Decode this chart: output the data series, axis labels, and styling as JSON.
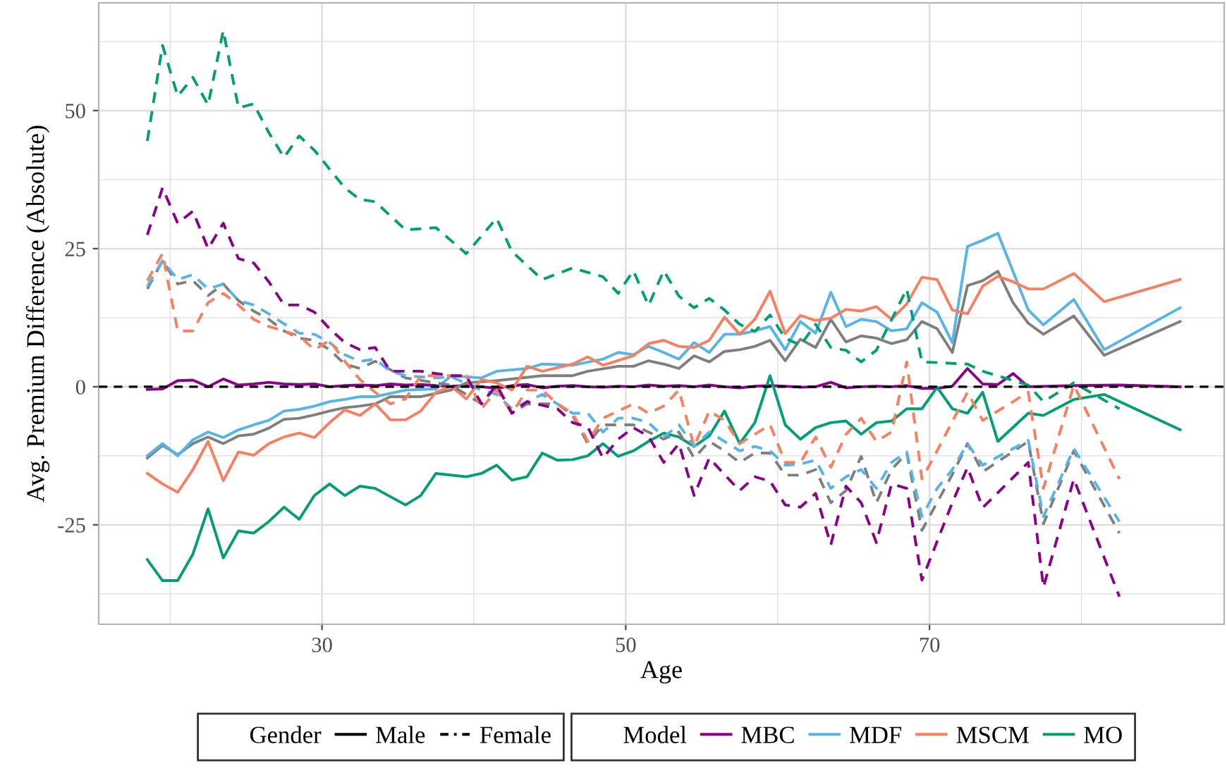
{
  "chart_data": {
    "type": "line",
    "xlabel": "Age",
    "ylabel": "Avg. Premium Difference (Absolute)",
    "legend_title": [
      "Gender",
      "Model"
    ],
    "annotations": [
      "Male",
      "Female"
    ],
    "xlim": [
      15.3,
      89.4
    ],
    "ylim": [
      -43,
      69.5
    ],
    "xticks": [
      30,
      50,
      70
    ],
    "yticks": [
      -25,
      0,
      25,
      50
    ],
    "grid": true,
    "legend": "bottom",
    "ref_lines": [
      {
        "axis": "y",
        "value": 0,
        "color": "#000000",
        "line_style": "dashed"
      }
    ],
    "series": [
      {
        "name": "MBC",
        "color": "#8b008b",
        "line_style": "solid",
        "x": [
          18.5,
          19.5,
          20.5,
          21.5,
          22.5,
          23.5,
          24.5,
          25.5,
          26.5,
          27.5,
          28.5,
          29.5,
          30.5,
          31.5,
          32.5,
          33.5,
          34.5,
          35.5,
          36.5,
          37.5,
          38.5,
          39.5,
          40.5,
          41.5,
          42.5,
          43.5,
          44.5,
          45.5,
          46.5,
          47.5,
          48.5,
          49.5,
          50.5,
          51.5,
          52.5,
          53.5,
          54.5,
          55.5,
          56.5,
          57.5,
          58.5,
          59.5,
          60.5,
          61.5,
          62.5,
          63.5,
          64.5,
          65.5,
          66.5,
          67.5,
          68.5,
          69.5,
          70.5,
          71.5,
          72.5,
          73.5,
          74.5,
          75.5,
          76.5,
          79.5,
          82.5,
          86.5
        ],
        "values": [
          -0.5,
          -0.4,
          1.1,
          1.2,
          0,
          1.4,
          0.3,
          0.5,
          0.8,
          0.5,
          0.4,
          0.5,
          0,
          0.2,
          0.3,
          0.2,
          0.5,
          0.3,
          0.4,
          0.2,
          0.1,
          0.2,
          0,
          -0.3,
          0.2,
          0.4,
          -0.2,
          0.1,
          0.2,
          0,
          -0.1,
          0.1,
          0,
          0.3,
          0.1,
          0.2,
          0,
          0.3,
          0,
          -0.2,
          0.1,
          0.2,
          0.1,
          -0.1,
          0,
          0.8,
          -0.2,
          0,
          0.1,
          0,
          0.2,
          -0.3,
          -0.3,
          0.1,
          3.3,
          0.5,
          0.4,
          2.4,
          0,
          0.2,
          0.3,
          0
        ]
      },
      {
        "color": "#7f7f7f",
        "line_style": "solid",
        "x": [
          18.5,
          19.5,
          20.5,
          21.5,
          22.5,
          23.5,
          24.5,
          25.5,
          26.5,
          27.5,
          28.5,
          29.5,
          30.5,
          31.5,
          32.5,
          33.5,
          34.5,
          36.5,
          38.5,
          39.5,
          41.5,
          44.5,
          46.5,
          47.5,
          49.5,
          50.5,
          51.5,
          52.5,
          53.5,
          54.5,
          55.5,
          56.5,
          57.5,
          58.5,
          59.5,
          60.5,
          61.5,
          62.5,
          63.5,
          64.5,
          65.5,
          66.5,
          67.5,
          68.5,
          69.5,
          70.5,
          71.5,
          72.5,
          73.5,
          74.5,
          75.5,
          76.5,
          77.5,
          79.5,
          81.5,
          86.5
        ],
        "values": [
          -12.9,
          -10.6,
          -12.3,
          -10.3,
          -9.1,
          -10.3,
          -8.9,
          -8.6,
          -7.5,
          -5.9,
          -5.7,
          -5.1,
          -4.4,
          -3.8,
          -3.5,
          -3.1,
          -1.8,
          -1.8,
          -0.6,
          0.7,
          1.1,
          2,
          2,
          2.8,
          3.7,
          3.7,
          4.7,
          4.1,
          3.3,
          5.6,
          4.5,
          6.4,
          6.7,
          7.3,
          8.4,
          4.7,
          8.6,
          7.1,
          12.2,
          8.1,
          9.2,
          8.8,
          7.8,
          8.5,
          11.8,
          10.5,
          6.2,
          18.3,
          19.2,
          20.9,
          15.2,
          11.5,
          9.5,
          12.8,
          5.7,
          11.8
        ]
      },
      {
        "name": "MDF",
        "color": "#56b4e9",
        "line_style": "solid",
        "x": [
          18.5,
          19.5,
          20.5,
          21.5,
          22.5,
          23.5,
          24.5,
          25.5,
          26.5,
          27.5,
          28.5,
          29.5,
          30.5,
          31.5,
          32.5,
          33.5,
          35.5,
          37.5,
          38.5,
          40.5,
          41.5,
          43.5,
          44.5,
          46.5,
          48.5,
          49.5,
          50.5,
          51.5,
          52.5,
          53.5,
          54.5,
          55.5,
          56.5,
          57.5,
          58.5,
          59.5,
          60.5,
          61.5,
          62.5,
          63.5,
          64.5,
          65.5,
          66.5,
          67.5,
          68.5,
          69.5,
          70.5,
          71.5,
          72.5,
          73.5,
          74.5,
          76.5,
          77.5,
          79.5,
          81.5,
          86.5
        ],
        "values": [
          -12.5,
          -10.3,
          -12.5,
          -9.6,
          -8.2,
          -9.2,
          -7.8,
          -6.9,
          -6.1,
          -4.4,
          -4.1,
          -3.5,
          -2.7,
          -2.3,
          -1.8,
          -1.8,
          -0.6,
          -0.4,
          2,
          1.6,
          2.8,
          3.3,
          4.1,
          3.9,
          5,
          6.2,
          5.8,
          7.3,
          6.2,
          5,
          8,
          6.2,
          9.5,
          9.5,
          10.1,
          10.9,
          6.7,
          11.8,
          9.7,
          17.1,
          10.9,
          12.2,
          11.8,
          10.1,
          10.5,
          15.2,
          13.5,
          8,
          25.4,
          26.5,
          27.8,
          13.9,
          11.2,
          15.8,
          6.7,
          14.3
        ]
      },
      {
        "name": "MSCM",
        "color": "#fa7f5e",
        "line_style": "solid",
        "x": [
          18.5,
          19.5,
          20.5,
          21.5,
          22.5,
          23.5,
          24.5,
          25.5,
          26.5,
          27.5,
          28.5,
          29.5,
          30.5,
          31.5,
          32.5,
          33.5,
          34.5,
          35.5,
          36.5,
          37.5,
          38.5,
          39.5,
          40.5,
          41.5,
          42.5,
          43.5,
          44.5,
          46.5,
          47.5,
          48.5,
          50.5,
          51.5,
          52.5,
          53.5,
          54.5,
          55.5,
          56.5,
          57.5,
          58.5,
          59.5,
          60.5,
          61.5,
          62.5,
          63.5,
          64.5,
          65.5,
          66.5,
          67.5,
          68.5,
          69.5,
          70.5,
          71.5,
          72.5,
          73.5,
          74.5,
          75.5,
          76.5,
          77.5,
          79.5,
          81.5,
          86.5
        ],
        "values": [
          -15.7,
          -17.6,
          -19.1,
          -15,
          -9.9,
          -17,
          -11.8,
          -12.4,
          -10.3,
          -9.1,
          -8.4,
          -9.2,
          -6.5,
          -4.2,
          -5.2,
          -3.1,
          -6,
          -6,
          -4.4,
          -1,
          0.1,
          -2.2,
          1.3,
          0.7,
          -0.6,
          3.7,
          2.8,
          4.1,
          5.4,
          3.9,
          5.6,
          7.8,
          8.4,
          7.3,
          7.1,
          8.4,
          12.6,
          9.5,
          12.2,
          17.3,
          9.6,
          12.9,
          12,
          12.4,
          14,
          13.7,
          14.5,
          12.2,
          15,
          19.8,
          19.4,
          13.9,
          13.2,
          18.2,
          20,
          19,
          17.7,
          17.7,
          20.5,
          15.4,
          19.4
        ]
      },
      {
        "name": "MO",
        "color": "#009e73",
        "line_style": "solid",
        "x": [
          18.5,
          19.5,
          20.5,
          21.5,
          22.5,
          23.5,
          24.5,
          25.5,
          26.5,
          27.5,
          28.5,
          29.5,
          30.5,
          31.5,
          32.5,
          33.5,
          35.5,
          36.5,
          37.5,
          39.5,
          40.5,
          41.5,
          42.5,
          43.5,
          44.5,
          45.5,
          46.5,
          47.5,
          48.5,
          49.5,
          50.5,
          51.5,
          52.5,
          53.5,
          54.5,
          55.5,
          56.5,
          57.5,
          58.5,
          59.5,
          60.5,
          61.5,
          62.5,
          63.5,
          64.5,
          65.5,
          66.5,
          67.5,
          68.5,
          69.5,
          70.5,
          71.5,
          72.5,
          73.5,
          74.5,
          76.5,
          77.5,
          79.5,
          81.5,
          86.5
        ],
        "values": [
          -31.3,
          -35.1,
          -35.1,
          -30.3,
          -22.1,
          -31,
          -26.1,
          -26.5,
          -24.4,
          -21.8,
          -24,
          -19.7,
          -17.6,
          -19.7,
          -18,
          -18.4,
          -21.4,
          -19.7,
          -15.7,
          -16.3,
          -15.7,
          -14.2,
          -16.9,
          -16.3,
          -12,
          -13.3,
          -13.2,
          -12.5,
          -10.3,
          -12.6,
          -11.6,
          -9.9,
          -8.4,
          -9.1,
          -10.8,
          -8.9,
          -4.4,
          -10.3,
          -6.5,
          2,
          -6.9,
          -9.5,
          -7.4,
          -6.5,
          -6.2,
          -8.6,
          -6.5,
          -6.2,
          -4,
          -4,
          -0.1,
          -4,
          -4.8,
          -1,
          -9.9,
          -4.8,
          -5.2,
          -2.3,
          -1.4,
          -7.8
        ]
      },
      {
        "color": "#7f7f7f",
        "line_style": "dashed",
        "x": [
          18.5,
          19.5,
          20.5,
          21.5,
          22.5,
          23.5,
          24.5,
          25.5,
          26.5,
          27.5,
          28.5,
          29.5,
          30.5,
          31.5,
          32.5,
          33.5,
          35.5,
          37.5,
          38.5,
          40.5,
          41.5,
          42.5,
          43.5,
          45.5,
          46.5,
          47.5,
          48.5,
          50.5,
          51.5,
          52.5,
          53.5,
          54.5,
          55.5,
          56.5,
          57.5,
          58.5,
          59.5,
          60.5,
          61.5,
          62.5,
          63.5,
          64.5,
          65.5,
          66.5,
          67.5,
          68.5,
          69.5,
          71.5,
          72.5,
          73.5,
          76.5,
          77.5,
          79.5,
          82.5
        ],
        "values": [
          17.7,
          22.8,
          18.6,
          19.2,
          16.5,
          18.6,
          15.6,
          13.7,
          12.2,
          10.1,
          8.8,
          8.4,
          6.7,
          4.1,
          3.3,
          4.6,
          1.6,
          0.7,
          0.3,
          -3.1,
          0.3,
          -4.8,
          -3.1,
          -3.1,
          -5.2,
          -10.3,
          -6.9,
          -6.9,
          -8.2,
          -9.5,
          -8.2,
          -12.9,
          -9.9,
          -11.6,
          -13.7,
          -12,
          -12,
          -16,
          -16,
          -15,
          -21,
          -18.8,
          -12.6,
          -21,
          -15,
          -12,
          -26,
          -15.9,
          -10.3,
          -15.4,
          -9.9,
          -24.8,
          -11.6,
          -26.5
        ]
      },
      {
        "color": "#56b4e9",
        "line_style": "dashed",
        "x": [
          18.5,
          19.5,
          20.5,
          21.5,
          22.5,
          23.5,
          24.5,
          25.5,
          26.5,
          27.5,
          28.5,
          29.5,
          30.5,
          31.5,
          32.5,
          33.5,
          34.5,
          35.5,
          37.5,
          38.5,
          40.5,
          41.5,
          42.5,
          43.5,
          44.5,
          46.5,
          47.5,
          48.5,
          49.5,
          50.5,
          51.5,
          52.5,
          53.5,
          54.5,
          55.5,
          56.5,
          57.5,
          58.5,
          59.5,
          60.5,
          61.5,
          62.5,
          63.5,
          64.5,
          65.5,
          66.5,
          67.5,
          68.5,
          69.5,
          70.5,
          71.5,
          72.5,
          73.5,
          76.5,
          77.5,
          79.5,
          82.5
        ],
        "values": [
          18.2,
          22.8,
          19.4,
          20.3,
          17.7,
          18.6,
          15.6,
          14.8,
          13.2,
          11.4,
          9.7,
          9.5,
          8,
          5.8,
          4.6,
          5,
          2.8,
          2,
          1.6,
          1.8,
          -0.6,
          -1.4,
          -4,
          -2.7,
          -1.4,
          -4.8,
          -4.8,
          -8.2,
          -5.7,
          -5.7,
          -6.5,
          -9.1,
          -6.9,
          -10.8,
          -8.2,
          -9.9,
          -11.6,
          -10.8,
          -11.6,
          -14.2,
          -14,
          -13.3,
          -18.4,
          -16.3,
          -15,
          -18.4,
          -13.7,
          -11.8,
          -23.5,
          -18.4,
          -15,
          -10.3,
          -14.2,
          -9.7,
          -23.5,
          -11.2,
          -24.4
        ]
      },
      {
        "color": "#fa7f5e",
        "line_style": "dashed",
        "x": [
          18.5,
          19.5,
          20.5,
          21.5,
          22.5,
          23.5,
          24.5,
          25.5,
          26.5,
          27.5,
          28.5,
          29.5,
          30.5,
          31.5,
          32.5,
          33.5,
          34.5,
          35.5,
          36.5,
          37.5,
          38.5,
          39.5,
          40.5,
          41.5,
          42.5,
          43.5,
          44.5,
          45.5,
          46.5,
          47.5,
          48.5,
          50.5,
          51.5,
          52.5,
          53.5,
          54.5,
          55.5,
          56.5,
          57.5,
          58.5,
          59.5,
          60.5,
          61.5,
          62.5,
          63.5,
          64.5,
          65.5,
          66.5,
          67.5,
          68.5,
          69.5,
          70.5,
          72.5,
          73.5,
          76.5,
          77.5,
          79.5,
          82.5
        ],
        "values": [
          19.2,
          24.1,
          10.1,
          10.1,
          15.2,
          16.9,
          14.8,
          12.2,
          10.9,
          10.1,
          9.2,
          6.7,
          8.4,
          4.6,
          1.3,
          -1,
          -3.1,
          -2.2,
          2,
          2,
          2,
          2,
          -4,
          -0.6,
          -4.8,
          -0.6,
          -0.6,
          -3.1,
          -4.8,
          -9.9,
          -5.7,
          -3.1,
          -4.8,
          -3.5,
          -0.6,
          -10.8,
          -4.4,
          -6.1,
          -10.3,
          -8.6,
          -6.9,
          -13.7,
          -13.7,
          -9.1,
          -14.6,
          -8.6,
          -5.7,
          -9.9,
          -8.2,
          4.5,
          -16.7,
          -11.6,
          -1,
          -6.1,
          -1,
          -18.4,
          0.3,
          -16.7
        ]
      },
      {
        "color": "#8b008b",
        "line_style": "dashed",
        "x": [
          18.5,
          19.5,
          20.5,
          21.5,
          22.5,
          23.5,
          24.5,
          25.5,
          26.5,
          27.5,
          28.5,
          29.5,
          30.5,
          31.5,
          32.5,
          33.5,
          34.5,
          36.5,
          37.5,
          38.5,
          39.5,
          40.5,
          41.5,
          42.5,
          43.5,
          45.5,
          46.5,
          47.5,
          48.5,
          49.5,
          50.5,
          51.5,
          52.5,
          53.5,
          54.5,
          55.5,
          56.5,
          57.5,
          58.5,
          59.5,
          60.5,
          61.5,
          62.5,
          63.5,
          64.5,
          65.5,
          66.5,
          67.5,
          68.5,
          69.5,
          71.5,
          72.5,
          73.5,
          76.5,
          77.5,
          79.5,
          82.5
        ],
        "values": [
          27.5,
          36,
          29.6,
          31.8,
          25,
          29.6,
          23.2,
          22.4,
          19,
          14.8,
          14.8,
          13.5,
          10.5,
          8,
          6.7,
          7.1,
          2.8,
          2.8,
          2.4,
          2,
          2,
          -3.1,
          0.3,
          -4.8,
          -2.7,
          -4,
          -6.5,
          -7.3,
          -12.9,
          -9.5,
          -7.4,
          -9,
          -13.7,
          -10.3,
          -19.7,
          -12.9,
          -15.9,
          -18.8,
          -16.3,
          -17.1,
          -21.4,
          -21.8,
          -19.3,
          -28.6,
          -18,
          -21,
          -28.2,
          -17.6,
          -18.4,
          -35,
          -21,
          -14.6,
          -21.9,
          -13.7,
          -36.3,
          -16.7,
          -38
        ]
      },
      {
        "color": "#009e73",
        "line_style": "dashed",
        "x": [
          18.5,
          19.5,
          20.5,
          21.5,
          22.5,
          23.5,
          24.5,
          25.5,
          26.5,
          27.5,
          28.5,
          29.5,
          30.5,
          31.5,
          32.5,
          33.5,
          35.5,
          37.5,
          39.5,
          41.5,
          42.5,
          44.5,
          46.5,
          48.5,
          49.5,
          50.5,
          51.5,
          52.5,
          53.5,
          54.5,
          55.5,
          56.5,
          57.5,
          58.5,
          59.5,
          60.5,
          61.5,
          62.5,
          63.5,
          64.5,
          65.5,
          66.5,
          68.5,
          69.5,
          72.5,
          73.5,
          76.5,
          77.5,
          79.5,
          82.5
        ],
        "values": [
          44.5,
          61.8,
          52.6,
          56,
          51,
          64.5,
          50.5,
          51.2,
          46,
          41.5,
          45.4,
          42.8,
          39.4,
          36,
          33.9,
          33.5,
          28.4,
          28.8,
          24.1,
          30.5,
          24.5,
          19.4,
          21.5,
          19.9,
          16.9,
          21,
          14.7,
          21,
          16.4,
          14.3,
          16,
          13.9,
          11.3,
          10,
          13,
          8.8,
          7.5,
          11.3,
          7.1,
          6.6,
          4.5,
          6.6,
          17.7,
          4.5,
          4.1,
          2.8,
          0.3,
          -2.7,
          0.7,
          -4
        ]
      }
    ]
  }
}
